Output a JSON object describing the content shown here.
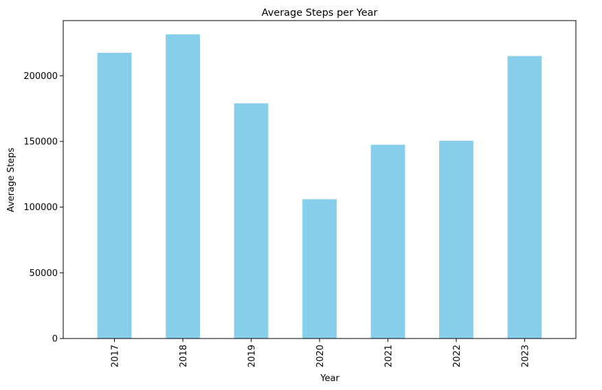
{
  "chart_data": {
    "type": "bar",
    "title": "Average Steps per Year",
    "xlabel": "Year",
    "ylabel": "Average Steps",
    "categories": [
      "2017",
      "2018",
      "2019",
      "2020",
      "2021",
      "2022",
      "2023"
    ],
    "values": [
      217500,
      231500,
      179000,
      106000,
      147500,
      150500,
      215000
    ],
    "ylim": [
      0,
      242000
    ],
    "yticks": [
      0,
      50000,
      100000,
      150000,
      200000
    ],
    "ytick_labels": [
      "0",
      "50000",
      "100000",
      "150000",
      "200000"
    ],
    "bar_color": "#87CEEB",
    "grid": false,
    "legend": "none"
  }
}
